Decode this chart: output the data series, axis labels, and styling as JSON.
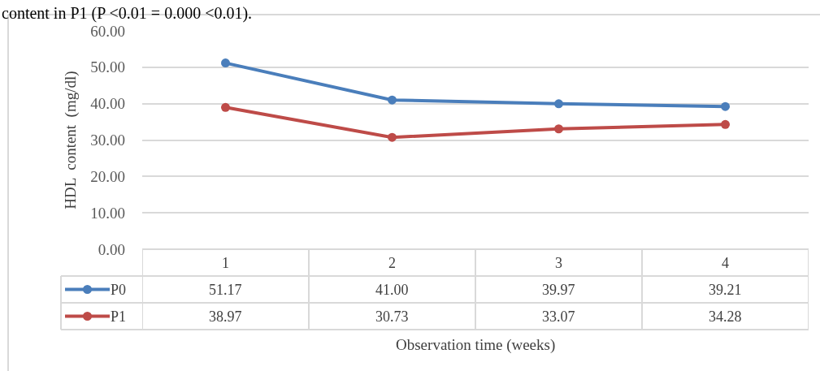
{
  "chart_data": {
    "type": "line",
    "ylabel": "HDL  content  (mg/dl)",
    "xlabel": "Observation time (weeks)",
    "categories": [
      "1",
      "2",
      "3",
      "4"
    ],
    "series": [
      {
        "name": "P0",
        "color": "#4a7ebb",
        "values": [
          51.17,
          41.0,
          39.97,
          39.21
        ]
      },
      {
        "name": "P1",
        "color": "#be4b48",
        "values": [
          38.97,
          30.73,
          33.07,
          34.28
        ]
      }
    ],
    "value_labels": [
      [
        "51.17",
        "41.00",
        "39.97",
        "39.21"
      ],
      [
        "38.97",
        "30.73",
        "33.07",
        "34.28"
      ]
    ],
    "ylim": [
      0,
      60
    ],
    "yticks": [
      {
        "value": 0,
        "label": "0.00"
      },
      {
        "value": 10,
        "label": "10.00"
      },
      {
        "value": 20,
        "label": "20.00"
      },
      {
        "value": 30,
        "label": "30.00"
      },
      {
        "value": 40,
        "label": "40.00"
      },
      {
        "value": 50,
        "label": "50.00"
      },
      {
        "value": 60,
        "label": "60.00"
      }
    ],
    "grid": "y",
    "legend": "bottom left",
    "marker": "circle",
    "line_style": "solid",
    "annotations": [
      "content in P1 (P <0.01 = 0.000 <0.01)."
    ]
  }
}
